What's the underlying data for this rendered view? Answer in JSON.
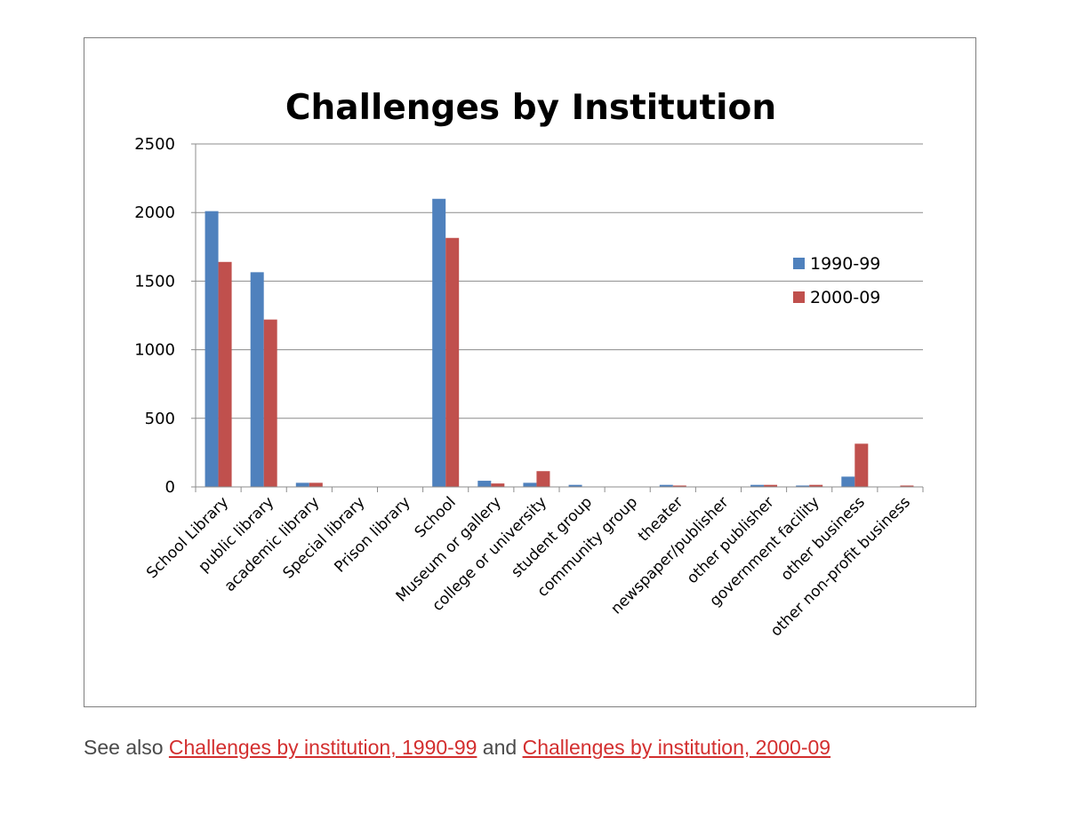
{
  "chart_data": {
    "type": "bar",
    "title": "Challenges by Institution",
    "xlabel": "",
    "ylabel": "",
    "ylim": [
      0,
      2500
    ],
    "yticks": [
      0,
      500,
      1000,
      1500,
      2000,
      2500
    ],
    "grid": true,
    "legend_position": "right",
    "categories": [
      "School Library",
      "public library",
      "academic library",
      "Special library",
      "Prison library",
      "School",
      "Museum or gallery",
      "college or university",
      "student group",
      "community group",
      "theater",
      "newspaper/publisher",
      "other publisher",
      "government facility",
      "other business",
      "other non-profit business"
    ],
    "series": [
      {
        "name": "1990-99",
        "color": "#4f81bd",
        "values": [
          2010,
          1565,
          30,
          0,
          0,
          2100,
          45,
          30,
          15,
          0,
          15,
          0,
          15,
          10,
          75,
          0
        ]
      },
      {
        "name": "2000-09",
        "color": "#c0504d",
        "values": [
          1640,
          1220,
          30,
          0,
          0,
          1815,
          25,
          115,
          0,
          0,
          10,
          0,
          15,
          15,
          315,
          10
        ]
      }
    ]
  },
  "footer": {
    "prefix": "See also ",
    "link1": "Challenges by institution, 1990-99",
    "middle": " and ",
    "link2": "Challenges by institution, 2000-09"
  },
  "colors": {
    "link": "#d32f2f",
    "text": "#4a4a4a",
    "frame_border": "#7f7f7f",
    "gridline": "#8c8c8c"
  }
}
